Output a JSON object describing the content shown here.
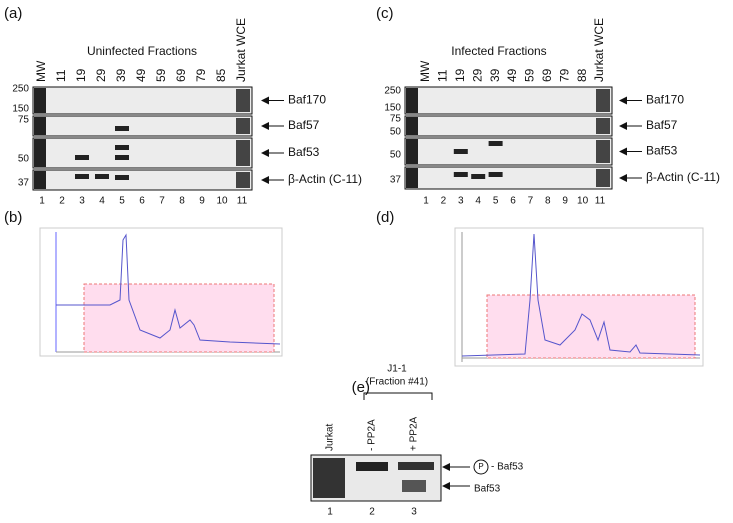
{
  "panel_a": {
    "label": "(a)",
    "title": "Uninfected Fractions",
    "lane_headers": [
      "MW",
      "11",
      "19",
      "29",
      "39",
      "49",
      "59",
      "69",
      "79",
      "85",
      "Jurkat WCE"
    ],
    "mw_markers": [
      "250",
      "150",
      "75",
      "50",
      "37"
    ],
    "band_labels": [
      "Baf170",
      "Baf57",
      "Baf53",
      "β-Actin (C-11)"
    ],
    "lane_numbers": [
      "1",
      "2",
      "3",
      "4",
      "5",
      "6",
      "7",
      "8",
      "9",
      "10",
      "11"
    ]
  },
  "panel_b": {
    "label": "(b)"
  },
  "panel_c": {
    "label": "(c)",
    "title": "Infected Fractions",
    "lane_headers": [
      "MW",
      "11",
      "19",
      "29",
      "39",
      "49",
      "59",
      "69",
      "79",
      "88",
      "Jurkat WCE"
    ],
    "mw_markers": [
      "250",
      "150",
      "75",
      "50",
      "50",
      "37"
    ],
    "band_labels": [
      "Baf170",
      "Baf57",
      "Baf53",
      "β-Actin (C-11)"
    ],
    "lane_numbers": [
      "1",
      "2",
      "3",
      "4",
      "5",
      "6",
      "7",
      "8",
      "9",
      "10",
      "11"
    ]
  },
  "panel_d": {
    "label": "(d)"
  },
  "panel_e": {
    "label": "(e)",
    "group_label": "J1-1",
    "group_sublabel": "(Fraction #41)",
    "lane_headers": [
      "Jurkat",
      "- PP2A",
      "+ PP2A"
    ],
    "phospho_symbol": "P",
    "band_labels": [
      "- Baf53",
      "Baf53"
    ],
    "lane_numbers": [
      "1",
      "2",
      "3"
    ]
  }
}
